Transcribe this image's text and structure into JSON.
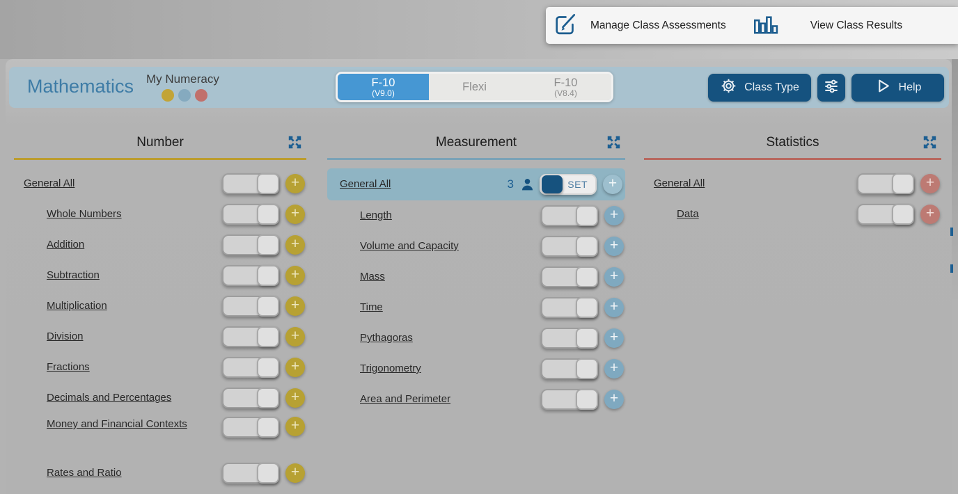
{
  "top_bar": {
    "manage_label": "Manage Class Assessments",
    "results_label": "View Class Results"
  },
  "header": {
    "subject": "Mathematics",
    "product": "My Numeracy",
    "dots": [
      "#c2a437",
      "#85aabf",
      "#c1706b"
    ],
    "tabs": [
      {
        "label": "F-10",
        "sublabel": "(V9.0)",
        "active": true
      },
      {
        "label": "Flexi",
        "sublabel": "",
        "active": false
      },
      {
        "label": "F-10",
        "sublabel": "(V8.4)",
        "active": false
      }
    ],
    "class_type_label": "Class Type",
    "help_label": "Help",
    "accent_blue": "#15527f"
  },
  "ui": {
    "plus_glyph": "+"
  },
  "columns": [
    {
      "title": "Number",
      "accent": "#bb9d2f",
      "plus_bg": "#b7a133",
      "plus_fg": "#ece5bb",
      "rows": [
        {
          "label": "General All",
          "indent": false
        },
        {
          "label": "Whole Numbers",
          "indent": true
        },
        {
          "label": "Addition",
          "indent": true
        },
        {
          "label": "Subtraction",
          "indent": true
        },
        {
          "label": "Multiplication",
          "indent": true
        },
        {
          "label": "Division",
          "indent": true
        },
        {
          "label": "Fractions",
          "indent": true
        },
        {
          "label": "Decimals and Percentages",
          "indent": true
        },
        {
          "label": "Money and Financial Contexts",
          "indent": true,
          "tall": true
        },
        {
          "label": "Rates and Ratio",
          "indent": true
        }
      ]
    },
    {
      "title": "Measurement",
      "accent": "#7aa2b7",
      "plus_bg": "#7fa9c0",
      "plus_fg": "#f0f5f8",
      "rows": [
        {
          "label": "General All",
          "indent": false,
          "highlighted": true,
          "count": "3",
          "set_label": "SET",
          "plus_bg": "#9dbfce",
          "plus_fg": "#f4f8fa"
        },
        {
          "label": "Length",
          "indent": true
        },
        {
          "label": "Volume and Capacity",
          "indent": true
        },
        {
          "label": "Mass",
          "indent": true
        },
        {
          "label": "Time",
          "indent": true
        },
        {
          "label": "Pythagoras",
          "indent": true
        },
        {
          "label": "Trigonometry",
          "indent": true
        },
        {
          "label": "Area and Perimeter",
          "indent": true
        }
      ]
    },
    {
      "title": "Statistics",
      "accent": "#b8685f",
      "plus_bg": "#bd7a73",
      "plus_fg": "#f2ddd9",
      "rows": [
        {
          "label": "General All",
          "indent": false
        },
        {
          "label": "Data",
          "indent": true
        }
      ]
    }
  ]
}
